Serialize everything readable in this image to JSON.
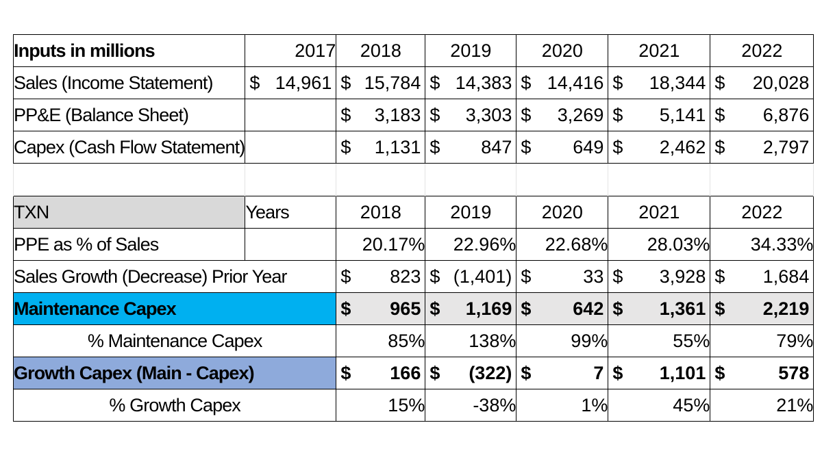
{
  "top_table": {
    "corner_label": "Inputs in millions",
    "years": [
      "2017",
      "2018",
      "2019",
      "2020",
      "2021",
      "2022"
    ],
    "rows": [
      {
        "label": "Sales (Income Statement)",
        "cells": [
          [
            "$",
            "14,961"
          ],
          [
            "$",
            "15,784"
          ],
          [
            "$",
            "14,383"
          ],
          [
            "$",
            "14,416"
          ],
          [
            "$",
            "18,344"
          ],
          [
            "$",
            "20,028"
          ]
        ]
      },
      {
        "label": "PP&E (Balance Sheet)",
        "cells": [
          [
            "",
            ""
          ],
          [
            "$",
            "3,183"
          ],
          [
            "$",
            "3,303"
          ],
          [
            "$",
            "3,269"
          ],
          [
            "$",
            "5,141"
          ],
          [
            "$",
            "6,876"
          ]
        ]
      },
      {
        "label": "Capex (Cash Flow Statement)",
        "cells": [
          [
            "",
            ""
          ],
          [
            "$",
            "1,131"
          ],
          [
            "$",
            "847"
          ],
          [
            "$",
            "649"
          ],
          [
            "$",
            "2,462"
          ],
          [
            "$",
            "2,797"
          ]
        ]
      }
    ]
  },
  "bottom_table": {
    "ticker": "TXN",
    "years_label": "Years",
    "years": [
      "2018",
      "2019",
      "2020",
      "2021",
      "2022"
    ],
    "ppe_pct_label": "PPE as % of Sales",
    "ppe_pct": [
      "20.17%",
      "22.96%",
      "22.68%",
      "28.03%",
      "34.33%"
    ],
    "sales_growth_label": "Sales Growth (Decrease) Prior Year",
    "sales_growth": [
      [
        "$",
        "823"
      ],
      [
        "$",
        "(1,401)"
      ],
      [
        "$",
        "33"
      ],
      [
        "$",
        "3,928"
      ],
      [
        "$",
        "1,684"
      ]
    ],
    "maint_label": "Maintenance Capex",
    "maint": [
      [
        "$",
        "965"
      ],
      [
        "$",
        "1,169"
      ],
      [
        "$",
        "642"
      ],
      [
        "$",
        "1,361"
      ],
      [
        "$",
        "2,219"
      ]
    ],
    "maint_pct_label": "% Maintenance Capex",
    "maint_pct": [
      "85%",
      "138%",
      "99%",
      "55%",
      "79%"
    ],
    "growth_label": "Growth Capex (Main - Capex)",
    "growth": [
      [
        "$",
        "166"
      ],
      [
        "$",
        "(322)"
      ],
      [
        "$",
        "7"
      ],
      [
        "$",
        "1,101"
      ],
      [
        "$",
        "578"
      ]
    ],
    "growth_pct_label": "% Growth Capex",
    "growth_pct": [
      "15%",
      "-38%",
      "1%",
      "45%",
      "21%"
    ]
  },
  "colors": {
    "maintenance_fill": "#00b0f0",
    "growth_fill": "#8eaadb",
    "ticker_fill": "#d9d9d9",
    "row_fill": "#e7e6e6"
  }
}
